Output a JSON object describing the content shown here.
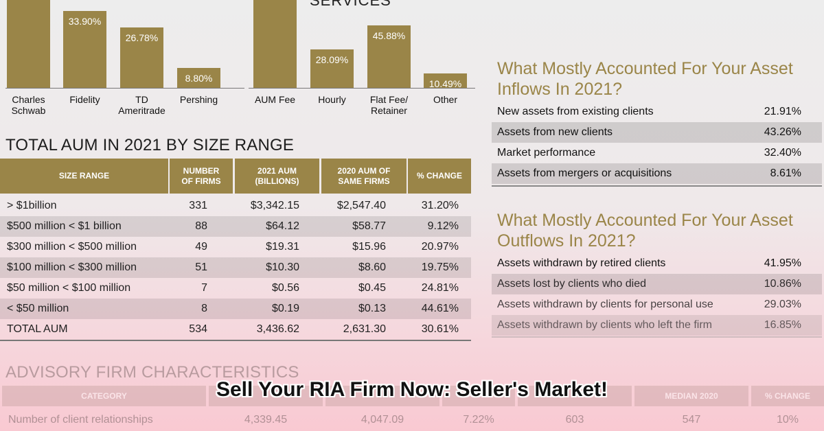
{
  "chart_data": [
    {
      "type": "bar",
      "title": "",
      "categories": [
        "Charles\nSchwab",
        "Fidelity",
        "TD\nAmeritrade",
        "Pershing"
      ],
      "values": [
        null,
        33.9,
        26.78,
        8.8
      ],
      "value_labels": [
        "",
        "33.90%",
        "26.78%",
        "8.80%"
      ],
      "ylim": [
        0,
        45
      ]
    },
    {
      "type": "bar",
      "title": "SERVICES",
      "categories": [
        "AUM Fee",
        "Hourly",
        "Flat Fee/\nRetainer",
        "Other"
      ],
      "values": [
        null,
        28.09,
        45.88,
        10.49
      ],
      "value_labels": [
        "",
        "28.09%",
        "45.88%",
        "10.49%"
      ],
      "ylim": [
        0,
        52
      ]
    },
    {
      "type": "table",
      "title": "TOTAL AUM IN 2021 BY SIZE RANGE",
      "columns": [
        "SIZE RANGE",
        "NUMBER\nOF FIRMS",
        "2021 AUM\n(BILLIONS)",
        "2020 AUM OF\nSAME FIRMS",
        "% CHANGE"
      ],
      "rows": [
        [
          "> $1billion",
          "331",
          "$3,342.15",
          "$2,547.40",
          "31.20%"
        ],
        [
          "$500 million < $1 billion",
          "88",
          "$64.12",
          "$58.77",
          "9.12%"
        ],
        [
          "$300 million < $500 million",
          "49",
          "$19.31",
          "$15.96",
          "20.97%"
        ],
        [
          "$100 million < $300 million",
          "51",
          "$10.30",
          "$8.60",
          "19.75%"
        ],
        [
          "$50 million < $100 million",
          "7",
          "$0.56",
          "$0.45",
          "24.81%"
        ],
        [
          "< $50 million",
          "8",
          "$0.19",
          "$0.13",
          "44.61%"
        ],
        [
          "TOTAL AUM",
          "534",
          "3,436.62",
          "2,631.30",
          "30.61%"
        ]
      ]
    },
    {
      "type": "table",
      "title": "What Mostly Accounted For Your Asset Inflows In 2021?",
      "rows": [
        [
          "New assets from existing clients",
          "21.91%"
        ],
        [
          "Assets from new clients",
          "43.26%"
        ],
        [
          "Market performance",
          "32.40%"
        ],
        [
          "Assets from mergers or acquisitions",
          "8.61%"
        ]
      ]
    },
    {
      "type": "table",
      "title": "What Mostly Accounted For Your Asset Outflows In 2021?",
      "rows": [
        [
          "Assets withdrawn by retired clients",
          "41.95%"
        ],
        [
          "Assets lost by clients who died",
          "10.86%"
        ],
        [
          "Assets withdrawn by clients for personal use",
          "29.03%"
        ],
        [
          "Assets withdrawn by clients who left the firm",
          "16.85%"
        ]
      ]
    },
    {
      "type": "table",
      "title": "ADVISORY FIRM CHARACTERISTICS",
      "columns": [
        "CATEGORY",
        "",
        "",
        "",
        "",
        "MEDIAN 2020",
        "% CHANGE"
      ],
      "rows": [
        [
          "Number of client relationships",
          "4,339.45",
          "4,047.09",
          "7.22%",
          "603",
          "547",
          "10%"
        ]
      ]
    }
  ],
  "banner": {
    "text": "Sell Your RIA Firm Now:  Seller's Market!"
  },
  "colors": {
    "gold": "#9a8548",
    "title_gold": "#9a8548",
    "background": "#ededed",
    "pink": "#f9c9d2"
  }
}
